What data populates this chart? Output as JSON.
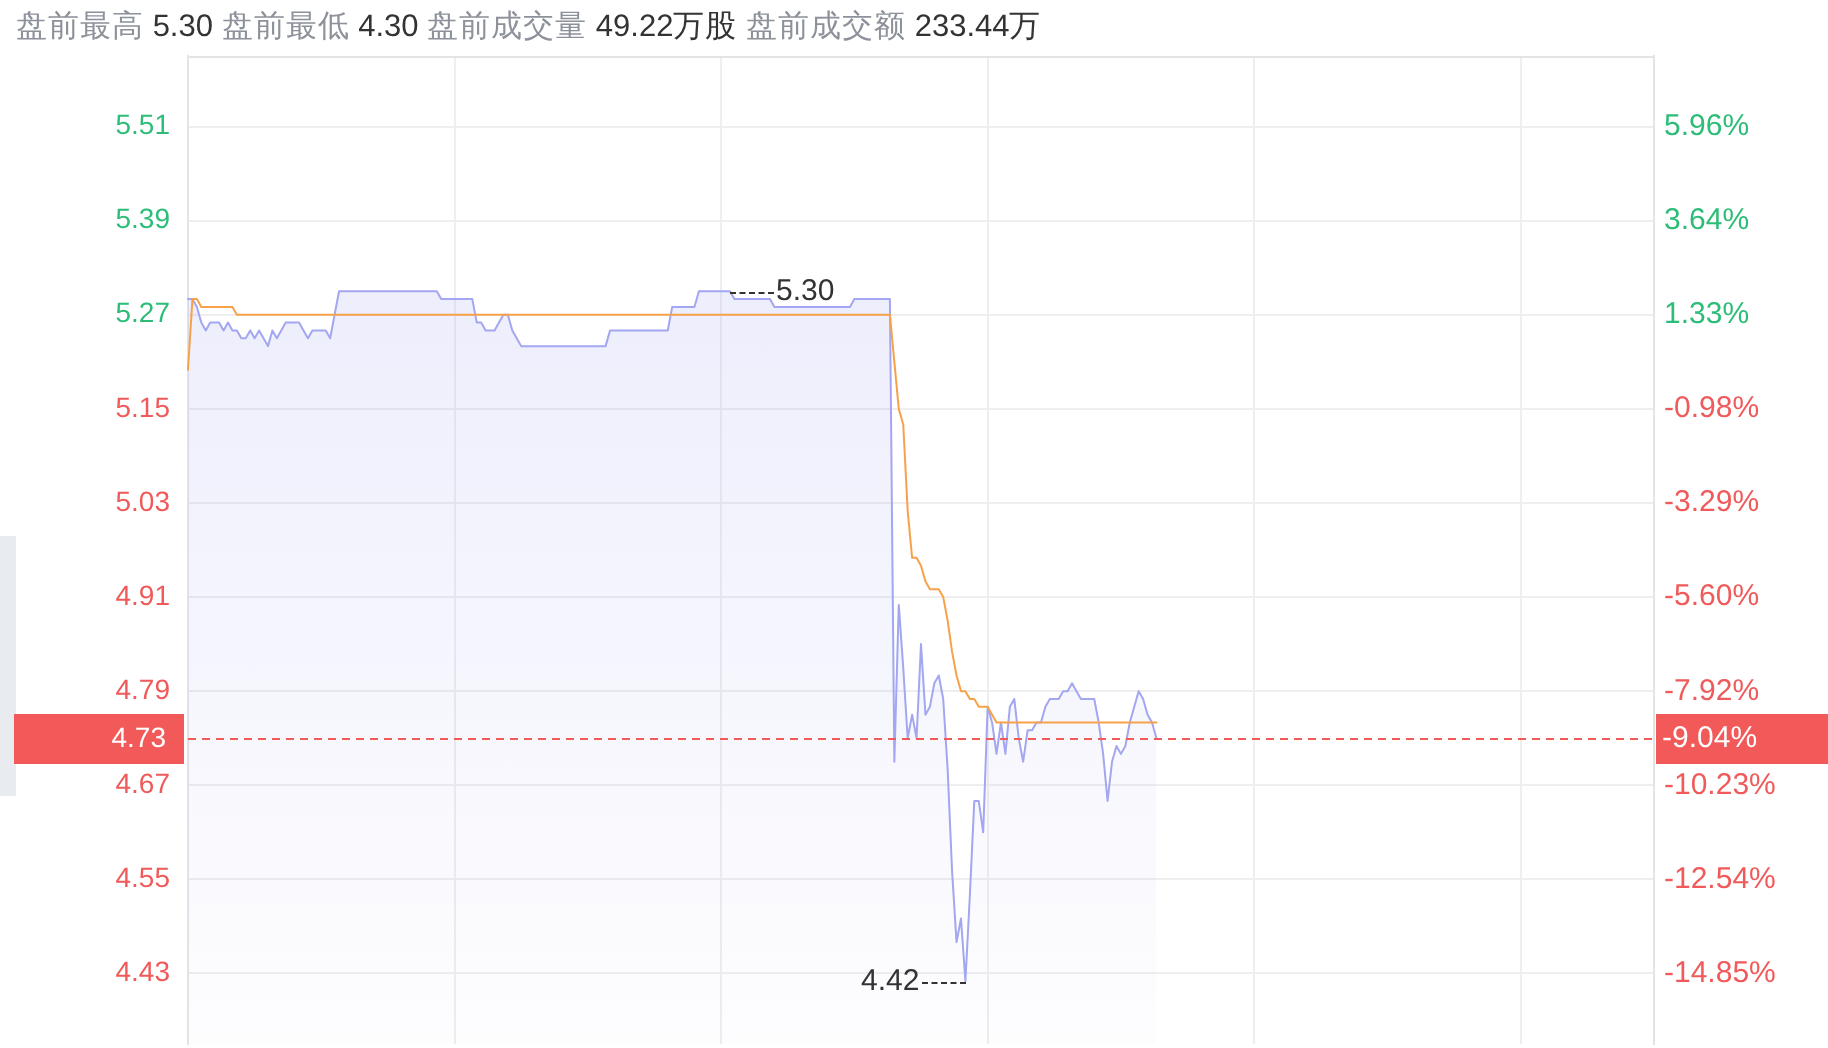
{
  "chart_data": {
    "type": "line",
    "title": "盘前最高 5.30 盘前最低 4.30 盘前成交量 49.22万股 盘前成交额 233.44万",
    "categories": [
      null,
      null,
      null,
      null,
      null,
      null,
      null,
      null,
      null,
      null,
      null,
      null,
      null,
      null,
      null,
      null,
      null,
      null,
      null,
      null,
      null,
      null,
      null,
      null,
      null,
      null,
      null,
      null,
      null,
      null,
      null,
      null,
      null,
      null,
      null,
      null,
      null,
      null,
      null,
      null,
      null,
      null,
      null,
      null,
      null,
      null,
      null,
      null,
      null,
      null,
      null,
      null,
      null,
      null,
      null,
      null,
      null,
      null,
      null,
      null,
      null,
      null,
      null,
      null,
      null,
      null,
      null,
      null,
      null,
      null,
      null,
      null,
      null,
      null,
      null,
      null,
      null,
      null,
      null,
      null,
      null,
      null,
      null,
      null,
      null,
      null,
      null,
      null,
      null,
      null,
      null,
      null,
      null,
      null,
      null,
      null,
      null,
      null,
      null,
      null,
      null,
      null,
      null,
      null,
      null,
      null,
      null,
      null,
      null,
      null,
      null,
      null,
      null,
      null,
      null,
      null,
      null,
      null,
      null,
      null,
      null,
      null,
      null,
      null,
      null,
      null,
      null,
      null,
      null,
      null,
      null,
      null,
      null,
      null,
      null,
      null,
      null,
      null,
      null,
      null,
      null,
      null,
      null,
      null,
      null,
      null,
      null,
      null,
      null,
      null,
      null,
      null,
      null,
      null,
      null,
      null,
      null,
      null,
      null,
      null,
      null,
      null,
      null,
      null,
      null,
      null,
      null,
      null,
      null,
      null,
      null,
      null,
      null,
      null,
      null,
      null,
      null,
      null,
      null,
      null,
      null,
      null,
      null,
      null,
      null,
      null,
      null,
      null,
      null,
      null,
      null,
      null,
      null,
      null,
      null,
      null,
      null,
      null,
      null,
      null,
      null,
      null,
      null,
      null,
      null,
      null,
      null,
      null,
      null,
      null,
      null,
      null,
      null,
      null,
      null,
      null,
      null,
      null,
      null,
      null,
      null,
      null,
      null,
      null,
      null,
      null,
      null,
      null,
      null,
      null,
      null,
      null,
      null,
      null,
      null,
      null,
      null,
      null,
      null,
      null,
      null,
      null,
      null,
      null,
      null,
      null,
      null,
      null,
      null,
      null,
      null,
      null,
      null,
      null,
      null,
      null,
      null,
      null,
      null,
      null,
      null,
      null,
      null,
      null,
      null,
      null,
      null,
      null,
      null,
      null,
      null,
      null,
      null,
      null,
      null,
      null,
      null,
      null,
      null,
      null,
      null,
      null,
      null,
      null,
      null,
      null,
      null,
      null,
      null,
      null,
      null,
      null,
      null,
      null,
      null,
      null,
      null,
      null,
      null,
      null,
      null,
      null,
      null,
      null,
      null,
      null,
      null,
      null,
      null,
      null,
      null,
      null,
      null,
      null,
      null,
      null,
      null,
      null,
      null,
      null,
      null,
      null,
      null,
      null,
      null,
      null,
      null,
      null,
      null,
      null,
      null
    ],
    "series": [
      {
        "type": "area",
        "color": "#a3a6f0",
        "values": [
          5.29,
          5.29,
          5.28,
          5.26,
          5.25,
          5.26,
          5.26,
          5.26,
          5.25,
          5.26,
          5.25,
          5.25,
          5.24,
          5.24,
          5.25,
          5.24,
          5.25,
          5.24,
          5.23,
          5.25,
          5.24,
          5.25,
          5.26,
          5.26,
          5.26,
          5.26,
          5.25,
          5.24,
          5.25,
          5.25,
          5.25,
          5.25,
          5.24,
          5.27,
          5.3,
          5.3,
          5.3,
          5.3,
          5.3,
          5.3,
          5.3,
          5.3,
          5.3,
          5.3,
          5.3,
          5.3,
          5.3,
          5.3,
          5.3,
          5.3,
          5.3,
          5.3,
          5.3,
          5.3,
          5.3,
          5.3,
          5.3,
          5.29,
          5.29,
          5.29,
          5.29,
          5.29,
          5.29,
          5.29,
          5.29,
          5.26,
          5.26,
          5.25,
          5.25,
          5.25,
          5.26,
          5.27,
          5.27,
          5.25,
          5.24,
          5.23,
          5.23,
          5.23,
          5.23,
          5.23,
          5.23,
          5.23,
          5.23,
          5.23,
          5.23,
          5.23,
          5.23,
          5.23,
          5.23,
          5.23,
          5.23,
          5.23,
          5.23,
          5.23,
          5.23,
          5.25,
          5.25,
          5.25,
          5.25,
          5.25,
          5.25,
          5.25,
          5.25,
          5.25,
          5.25,
          5.25,
          5.25,
          5.25,
          5.25,
          5.28,
          5.28,
          5.28,
          5.28,
          5.28,
          5.28,
          5.3,
          5.3,
          5.3,
          5.3,
          5.3,
          5.3,
          5.3,
          5.3,
          5.29,
          5.29,
          5.29,
          5.29,
          5.29,
          5.29,
          5.29,
          5.29,
          5.29,
          5.28,
          5.28,
          5.28,
          5.28,
          5.28,
          5.28,
          5.28,
          5.28,
          5.28,
          5.28,
          5.28,
          5.28,
          5.28,
          5.28,
          5.28,
          5.28,
          5.28,
          5.28,
          5.29,
          5.29,
          5.29,
          5.29,
          5.29,
          5.29,
          5.29,
          5.29,
          5.29,
          4.7,
          4.9,
          4.82,
          4.73,
          4.76,
          4.73,
          4.85,
          4.76,
          4.77,
          4.8,
          4.81,
          4.78,
          4.69,
          4.56,
          4.47,
          4.5,
          4.42,
          4.53,
          4.65,
          4.65,
          4.61,
          4.77,
          4.75,
          4.71,
          4.75,
          4.71,
          4.77,
          4.78,
          4.73,
          4.7,
          4.74,
          4.74,
          4.75,
          4.75,
          4.77,
          4.78,
          4.78,
          4.78,
          4.79,
          4.79,
          4.8,
          4.79,
          4.78,
          4.78,
          4.78,
          4.78,
          4.75,
          4.71,
          4.65,
          4.7,
          4.72,
          4.71,
          4.72,
          4.75,
          4.77,
          4.79,
          4.78,
          4.76,
          4.75,
          4.73,
          null,
          null,
          null,
          null,
          null,
          null,
          null,
          null,
          null,
          null,
          null,
          null,
          null,
          null,
          null,
          null,
          null,
          null,
          null,
          null,
          null,
          null,
          null,
          null,
          null,
          null,
          null,
          null,
          null,
          null,
          null,
          null,
          null,
          null,
          null,
          null,
          null,
          null,
          null,
          null,
          null,
          null,
          null,
          null,
          null,
          null,
          null,
          null,
          null,
          null,
          null,
          null,
          null,
          null,
          null,
          null,
          null,
          null,
          null,
          null,
          null,
          null,
          null,
          null,
          null,
          null,
          null,
          null,
          null,
          null,
          null,
          null,
          null,
          null,
          null,
          null,
          null,
          null,
          null,
          null,
          null,
          null,
          null,
          null,
          null,
          null,
          null,
          null,
          null,
          null,
          null,
          null,
          null,
          null,
          null,
          null,
          null,
          null,
          null,
          null,
          null,
          null,
          null,
          null,
          null,
          null,
          null,
          null,
          null,
          null,
          null,
          null
        ]
      },
      {
        "type": "line",
        "color": "#f7a24b",
        "values": [
          5.2,
          5.29,
          5.29,
          5.28,
          5.28,
          5.28,
          5.28,
          5.28,
          5.28,
          5.28,
          5.28,
          5.27,
          5.27,
          5.27,
          5.27,
          5.27,
          5.27,
          5.27,
          5.27,
          5.27,
          5.27,
          5.27,
          5.27,
          5.27,
          5.27,
          5.27,
          5.27,
          5.27,
          5.27,
          5.27,
          5.27,
          5.27,
          5.27,
          5.27,
          5.27,
          5.27,
          5.27,
          5.27,
          5.27,
          5.27,
          5.27,
          5.27,
          5.27,
          5.27,
          5.27,
          5.27,
          5.27,
          5.27,
          5.27,
          5.27,
          5.27,
          5.27,
          5.27,
          5.27,
          5.27,
          5.27,
          5.27,
          5.27,
          5.27,
          5.27,
          5.27,
          5.27,
          5.27,
          5.27,
          5.27,
          5.27,
          5.27,
          5.27,
          5.27,
          5.27,
          5.27,
          5.27,
          5.27,
          5.27,
          5.27,
          5.27,
          5.27,
          5.27,
          5.27,
          5.27,
          5.27,
          5.27,
          5.27,
          5.27,
          5.27,
          5.27,
          5.27,
          5.27,
          5.27,
          5.27,
          5.27,
          5.27,
          5.27,
          5.27,
          5.27,
          5.27,
          5.27,
          5.27,
          5.27,
          5.27,
          5.27,
          5.27,
          5.27,
          5.27,
          5.27,
          5.27,
          5.27,
          5.27,
          5.27,
          5.27,
          5.27,
          5.27,
          5.27,
          5.27,
          5.27,
          5.27,
          5.27,
          5.27,
          5.27,
          5.27,
          5.27,
          5.27,
          5.27,
          5.27,
          5.27,
          5.27,
          5.27,
          5.27,
          5.27,
          5.27,
          5.27,
          5.27,
          5.27,
          5.27,
          5.27,
          5.27,
          5.27,
          5.27,
          5.27,
          5.27,
          5.27,
          5.27,
          5.27,
          5.27,
          5.27,
          5.27,
          5.27,
          5.27,
          5.27,
          5.27,
          5.27,
          5.27,
          5.27,
          5.27,
          5.27,
          5.27,
          5.27,
          5.27,
          5.27,
          5.21,
          5.15,
          5.13,
          5.02,
          4.96,
          4.96,
          4.95,
          4.93,
          4.92,
          4.92,
          4.92,
          4.91,
          4.88,
          4.84,
          4.81,
          4.79,
          4.79,
          4.78,
          4.78,
          4.77,
          4.77,
          4.77,
          4.76,
          4.75,
          4.75,
          4.75,
          4.75,
          4.75,
          4.75,
          4.75,
          4.75,
          4.75,
          4.75,
          4.75,
          4.75,
          4.75,
          4.75,
          4.75,
          4.75,
          4.75,
          4.75,
          4.75,
          4.75,
          4.75,
          4.75,
          4.75,
          4.75,
          4.75,
          4.75,
          4.75,
          4.75,
          4.75,
          4.75,
          4.75,
          4.75,
          4.75,
          4.75,
          4.75,
          4.75,
          4.75,
          null,
          null,
          null,
          null,
          null,
          null,
          null,
          null,
          null,
          null,
          null,
          null,
          null,
          null,
          null,
          null,
          null,
          null,
          null,
          null,
          null,
          null,
          null,
          null,
          null,
          null,
          null,
          null,
          null,
          null,
          null,
          null,
          null,
          null,
          null,
          null,
          null,
          null,
          null,
          null,
          null,
          null,
          null,
          null,
          null,
          null,
          null,
          null,
          null,
          null,
          null,
          null,
          null,
          null,
          null,
          null,
          null,
          null,
          null,
          null,
          null,
          null,
          null,
          null,
          null,
          null,
          null,
          null,
          null,
          null,
          null,
          null,
          null,
          null,
          null,
          null,
          null,
          null,
          null,
          null,
          null,
          null,
          null,
          null,
          null,
          null,
          null,
          null,
          null,
          null,
          null,
          null,
          null,
          null,
          null,
          null,
          null,
          null,
          null,
          null,
          null,
          null,
          null,
          null,
          null,
          null,
          null,
          null,
          null,
          null,
          null,
          null
        ]
      }
    ],
    "ylim": [
      4.34,
      5.6
    ],
    "yticks": [
      4.43,
      4.55,
      4.67,
      4.79,
      4.91,
      5.03,
      5.15,
      5.27,
      5.39,
      5.51
    ],
    "y2lim": [
      -16.58,
      7.69
    ],
    "y2ticks": [
      {
        "value": -14.85,
        "label": "-14.85%"
      },
      {
        "value": -12.54,
        "label": "-12.54%"
      },
      {
        "value": -10.23,
        "label": "-10.23%"
      },
      {
        "value": -7.92,
        "label": "-7.92%"
      },
      {
        "value": -5.6,
        "label": "-5.60%"
      },
      {
        "value": -3.29,
        "label": "-3.29%"
      },
      {
        "value": -0.98,
        "label": "-0.98%"
      },
      {
        "value": 1.33,
        "label": "1.33%"
      },
      {
        "value": 3.64,
        "label": "3.64%"
      },
      {
        "value": 5.96,
        "label": "5.96%"
      }
    ],
    "grid": true,
    "ref_lines": [
      {
        "axis": "y",
        "value": 4.73,
        "label": "4.73",
        "color": "#f25a5a",
        "line_style": "dashed"
      }
    ],
    "annotations": [
      "5.30",
      "4.42",
      "-9.04%"
    ]
  }
}
